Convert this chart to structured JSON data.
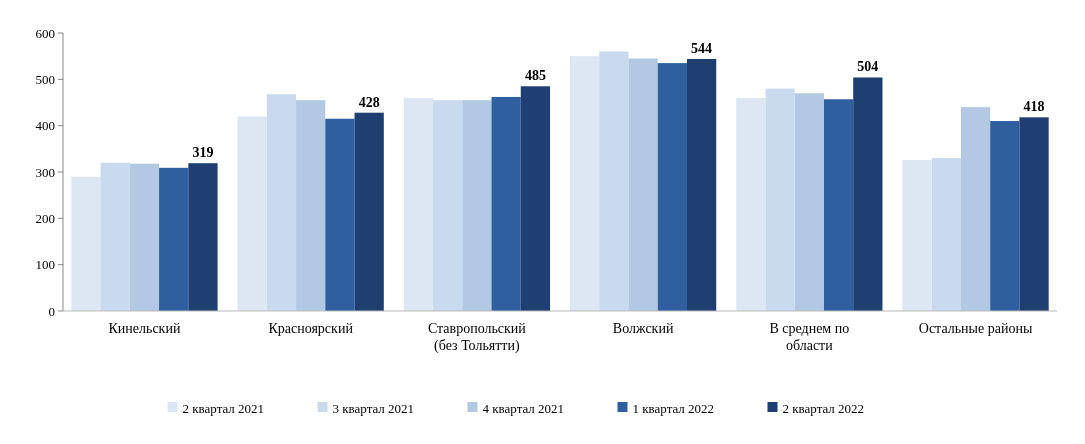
{
  "chart_data": {
    "type": "bar",
    "categories": [
      "Кинельский",
      "Красноярский",
      "Ставропольский (без Тольятти)",
      "Волжский",
      "В среднем по области",
      "Остальные районы"
    ],
    "series": [
      {
        "name": "2 квартал 2021",
        "color": "#dde7f3",
        "values": [
          290,
          420,
          460,
          550,
          460,
          326
        ]
      },
      {
        "name": "3 квартал 2021",
        "color": "#c9daee",
        "values": [
          320,
          468,
          455,
          560,
          480,
          330
        ]
      },
      {
        "name": "4 квартал 2021",
        "color": "#b3c9e3",
        "values": [
          318,
          455,
          455,
          545,
          470,
          440
        ]
      },
      {
        "name": "1 квартал 2022",
        "color": "#2f5f9f",
        "values": [
          309,
          415,
          462,
          535,
          457,
          410
        ]
      },
      {
        "name": "2 квартал 2022",
        "color": "#1f3e72",
        "values": [
          319,
          428,
          485,
          544,
          504,
          418
        ],
        "value_labels": [
          "319",
          "428",
          "485",
          "544",
          "504",
          "418"
        ]
      }
    ],
    "ylim": [
      0,
      600
    ],
    "yticks": [
      0,
      100,
      200,
      300,
      400,
      500,
      600
    ],
    "legend": "bottom"
  }
}
